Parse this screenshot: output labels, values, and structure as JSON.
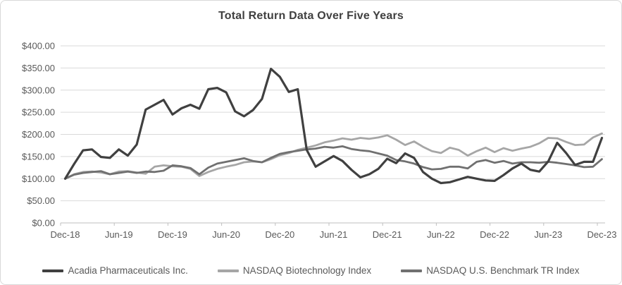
{
  "chart_data": {
    "type": "line",
    "title": "Total Return Data Over Five Years",
    "x_tick_labels": [
      "Dec-18",
      "Jun-19",
      "Dec-19",
      "Jun-20",
      "Dec-20",
      "Jun-21",
      "Dec-21",
      "Jun-22",
      "Dec-22",
      "Jun-23",
      "Dec-23"
    ],
    "x_points_per_tick": 6,
    "x_interval": "monthly",
    "y_tick_labels": [
      "$0.00",
      "$50.00",
      "$100.00",
      "$150.00",
      "$200.00",
      "$250.00",
      "$300.00",
      "$350.00",
      "$400.00"
    ],
    "ylim": [
      0,
      400
    ],
    "y_step": 50,
    "grid": "horizontal",
    "legend_position": "bottom",
    "series": [
      {
        "name": "Acadia Pharmaceuticals Inc.",
        "color": "#404040",
        "values": [
          100,
          133,
          164,
          166,
          149,
          147,
          166,
          152,
          177,
          256,
          267,
          278,
          245,
          259,
          267,
          258,
          302,
          305,
          295,
          252,
          241,
          255,
          280,
          348,
          330,
          296,
          302,
          165,
          127,
          139,
          151,
          140,
          120,
          103,
          110,
          122,
          145,
          135,
          157,
          147,
          115,
          100,
          90,
          92,
          98,
          104,
          100,
          96,
          95,
          108,
          123,
          134,
          120,
          116,
          139,
          181,
          158,
          131,
          138,
          138,
          192
        ]
      },
      {
        "name": "NASDAQ Biotechnology Index",
        "color": "#A6A6A6",
        "values": [
          100,
          110,
          115,
          116,
          114,
          110,
          116,
          117,
          114,
          111,
          127,
          130,
          128,
          127,
          122,
          106,
          115,
          122,
          127,
          131,
          137,
          139,
          137,
          144,
          153,
          158,
          165,
          170,
          175,
          182,
          186,
          191,
          188,
          192,
          190,
          193,
          198,
          188,
          176,
          184,
          172,
          162,
          158,
          170,
          165,
          152,
          162,
          170,
          160,
          169,
          163,
          168,
          172,
          180,
          192,
          191,
          183,
          176,
          177,
          193,
          202
        ]
      },
      {
        "name": "NASDAQ U.S. Benchmark TR Index",
        "color": "#707070",
        "values": [
          100,
          109,
          113,
          115,
          117,
          110,
          113,
          116,
          113,
          116,
          115,
          118,
          130,
          128,
          124,
          110,
          125,
          134,
          138,
          142,
          146,
          140,
          137,
          147,
          156,
          160,
          163,
          166,
          168,
          172,
          170,
          173,
          167,
          164,
          162,
          157,
          152,
          142,
          139,
          134,
          126,
          121,
          122,
          127,
          127,
          123,
          138,
          142,
          136,
          140,
          134,
          137,
          137,
          136,
          138,
          136,
          133,
          130,
          126,
          127,
          144
        ]
      }
    ]
  },
  "colors": {
    "gridline": "#D9D9D9",
    "axis_line": "#BFBFBF",
    "label_text": "#595959",
    "title_text": "#404040",
    "frame_border": "#D9D9D9"
  }
}
